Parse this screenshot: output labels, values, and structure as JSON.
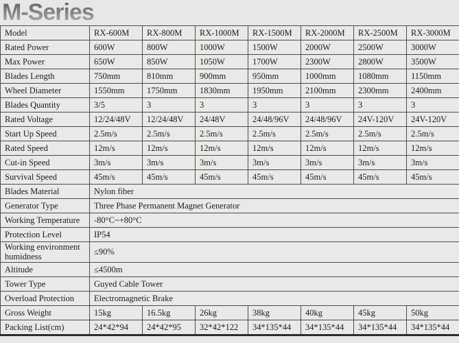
{
  "page": {
    "title": "M-Series"
  },
  "colors": {
    "page_bg": "#e8e7e5",
    "cell_bg": "#eae9e7",
    "border": "#4b4b4b",
    "title_gray": "#87878a",
    "text": "#1c1c1c"
  },
  "table": {
    "rows": [
      {
        "label": "Model",
        "values": [
          "RX-600M",
          "RX-800M",
          "RX-1000M",
          "RX-1500M",
          "RX-2000M",
          "RX-2500M",
          "RX-3000M"
        ]
      },
      {
        "label": "Rated Power",
        "values": [
          "600W",
          "800W",
          "1000W",
          "1500W",
          "2000W",
          "2500W",
          "3000W"
        ]
      },
      {
        "label": "Max Power",
        "values": [
          "650W",
          "850W",
          "1050W",
          "1700W",
          "2300W",
          "2800W",
          "3500W"
        ]
      },
      {
        "label": "Blades Length",
        "values": [
          "750mm",
          "810mm",
          "900mm",
          "950mm",
          "1000mm",
          "1080mm",
          "1150mm"
        ]
      },
      {
        "label": "Wheel Diameter",
        "values": [
          "1550mm",
          "1750mm",
          "1830mm",
          "1950mm",
          "2100mm",
          "2300mm",
          "2400mm"
        ]
      },
      {
        "label": "Blades Quantity",
        "values": [
          "3/5",
          "3",
          "3",
          "3",
          "3",
          "3",
          "3"
        ]
      },
      {
        "label": "Rated Voltage",
        "values": [
          "12/24/48V",
          "12/24/48V",
          "24/48V",
          "24/48/96V",
          "24/48/96V",
          "24V-120V",
          "24V-120V"
        ]
      },
      {
        "label": "Start Up Speed",
        "values": [
          "2.5m/s",
          "2.5m/s",
          "2.5m/s",
          "2.5m/s",
          "2.5m/s",
          "2.5m/s",
          "2.5m/s"
        ]
      },
      {
        "label": "Rated Speed",
        "values": [
          "12m/s",
          "12m/s",
          "12m/s",
          "12m/s",
          "12m/s",
          "12m/s",
          "12m/s"
        ]
      },
      {
        "label": "Cut-in Speed",
        "values": [
          "3m/s",
          "3m/s",
          "3m/s",
          "3m/s",
          "3m/s",
          "3m/s",
          "3m/s"
        ]
      },
      {
        "label": "Survival Speed",
        "values": [
          "45m/s",
          "45m/s",
          "45m/s",
          "45m/s",
          "45m/s",
          "45m/s",
          "45m/s"
        ]
      },
      {
        "label": "Blades Material",
        "value": "Nylon fiber"
      },
      {
        "label": "Generator Type",
        "value": "Three Phase Permanent Magnet Generator"
      },
      {
        "label": "Working Temperature",
        "value": "-80°C~+80°C"
      },
      {
        "label": "Protection Level",
        "value": "IP54"
      },
      {
        "label": "Working environment humidness",
        "value": "≤90%"
      },
      {
        "label": "Altitude",
        "value": "≤4500m"
      },
      {
        "label": "Tower Type",
        "value": "Guyed Cable Tower"
      },
      {
        "label": "Overload Protection",
        "value": "Electromagnetic Brake"
      },
      {
        "label": "Gross Weight",
        "values": [
          "15kg",
          "16.5kg",
          "26kg",
          "38kg",
          "40kg",
          "45kg",
          "50kg"
        ]
      },
      {
        "label": "Packing List(cm)",
        "values": [
          "24*42*94",
          "24*42*95",
          "32*42*122",
          "34*135*44",
          "34*135*44",
          "34*135*44",
          "34*135*44"
        ]
      }
    ]
  }
}
